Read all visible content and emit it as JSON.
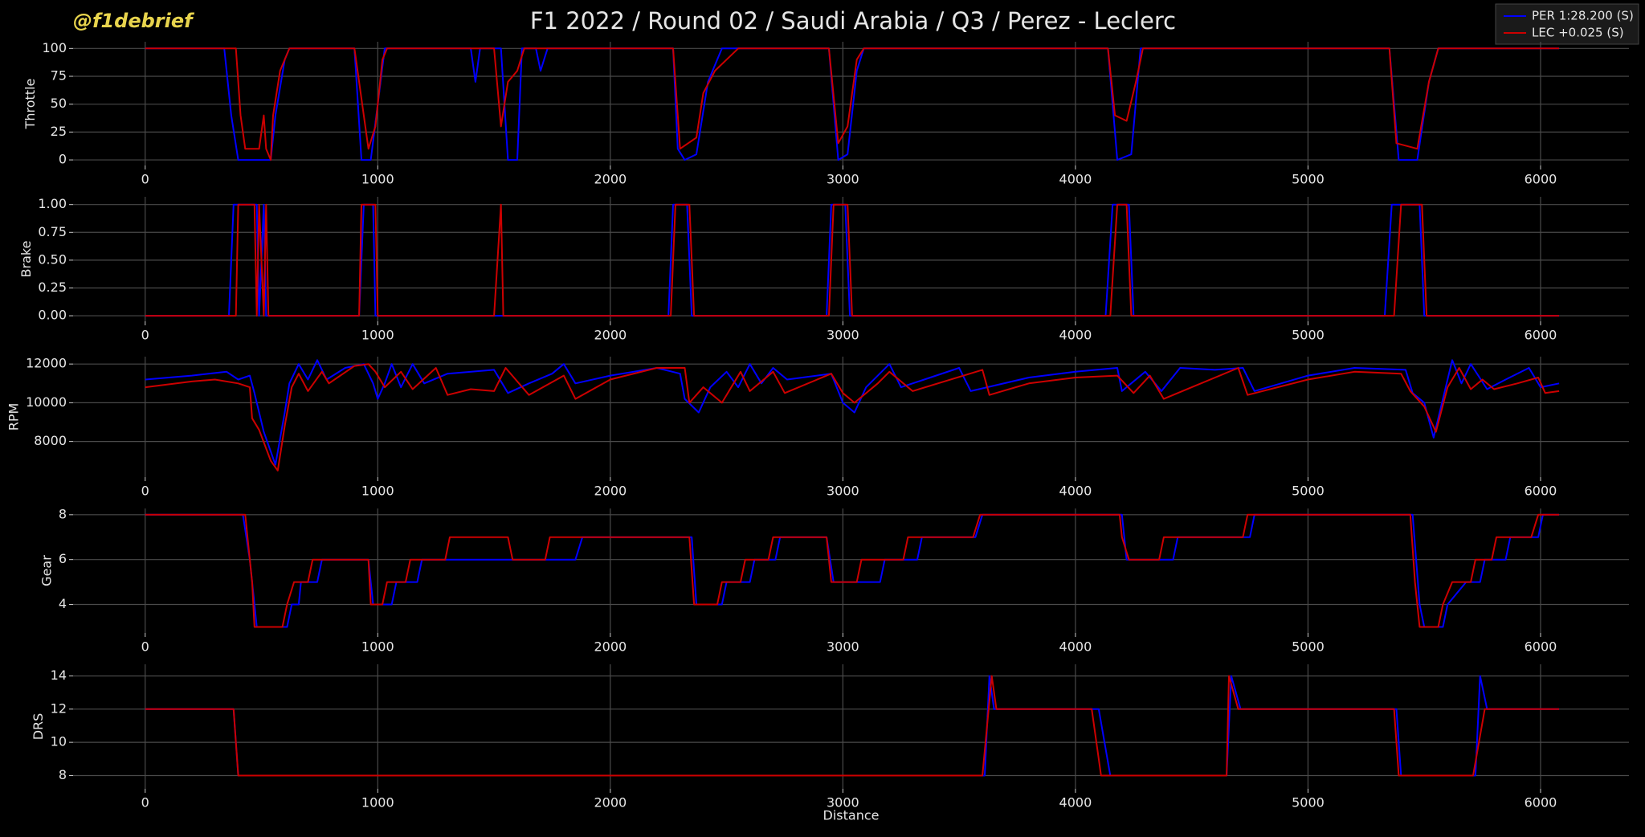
{
  "title": "F1 2022 / Round 02 / Saudi Arabia / Q3 / Perez - Leclerc",
  "watermark": "@f1debrief",
  "legend": [
    {
      "name": "PER 1:28.200 (S)",
      "color": "#0000ff"
    },
    {
      "name": "LEC +0.025 (S)",
      "color": "#cc0000"
    }
  ],
  "chart_data": [
    {
      "type": "line",
      "ylabel": "Throttle",
      "xlim": [
        -310,
        6380
      ],
      "xticks": [
        0,
        1000,
        2000,
        3000,
        4000,
        5000,
        6000
      ],
      "ylim": [
        -5,
        106
      ],
      "yticks": [
        0,
        25,
        50,
        75,
        100
      ],
      "grid": true,
      "series": [
        {
          "x": [
            0,
            340,
            370,
            400,
            500,
            540,
            560,
            600,
            620,
            900,
            930,
            970,
            1000,
            1030,
            1400,
            1420,
            1440,
            1530,
            1560,
            1600,
            1620,
            1680,
            1700,
            1730,
            2270,
            2290,
            2320,
            2370,
            2420,
            2480,
            2940,
            2980,
            3020,
            3060,
            3090,
            4140,
            4180,
            4240,
            4280,
            5350,
            5390,
            5470,
            5520,
            5560,
            6080
          ],
          "values": [
            100,
            100,
            40,
            0,
            0,
            0,
            40,
            90,
            100,
            100,
            0,
            0,
            50,
            100,
            100,
            70,
            100,
            100,
            0,
            0,
            100,
            100,
            80,
            100,
            100,
            10,
            0,
            5,
            70,
            100,
            100,
            0,
            5,
            80,
            100,
            100,
            0,
            5,
            100,
            100,
            0,
            0,
            70,
            100,
            100
          ]
        },
        {
          "x": [
            0,
            390,
            410,
            430,
            490,
            510,
            520,
            540,
            550,
            580,
            620,
            900,
            940,
            960,
            990,
            1020,
            1040,
            1500,
            1530,
            1560,
            1600,
            1630,
            2270,
            2300,
            2370,
            2400,
            2450,
            2500,
            2550,
            2940,
            2980,
            3020,
            3060,
            3090,
            4140,
            4170,
            4220,
            4260,
            4290,
            5350,
            5380,
            5470,
            5520,
            5560,
            6080
          ],
          "values": [
            100,
            100,
            40,
            10,
            10,
            40,
            10,
            0,
            40,
            80,
            100,
            100,
            40,
            10,
            30,
            90,
            100,
            100,
            30,
            70,
            80,
            100,
            100,
            10,
            20,
            60,
            80,
            90,
            100,
            100,
            15,
            30,
            90,
            100,
            100,
            40,
            35,
            70,
            100,
            100,
            15,
            10,
            70,
            100,
            100
          ]
        }
      ]
    },
    {
      "type": "line",
      "ylabel": "Brake",
      "xlim": [
        -310,
        6380
      ],
      "xticks": [
        0,
        1000,
        2000,
        3000,
        4000,
        5000,
        6000
      ],
      "ylim": [
        -0.05,
        1.07
      ],
      "yticks": [
        {
          "value": 0,
          "label": "0.00"
        },
        {
          "value": 0.25,
          "label": "0.25"
        },
        {
          "value": 0.5,
          "label": "0.50"
        },
        {
          "value": 0.75,
          "label": "0.75"
        },
        {
          "value": 1,
          "label": "1.00"
        }
      ],
      "grid": true,
      "series": [
        {
          "x": [
            0,
            360,
            380,
            480,
            490,
            510,
            520,
            920,
            940,
            980,
            990,
            2250,
            2270,
            2330,
            2350,
            2930,
            2950,
            3010,
            3030,
            4130,
            4160,
            4230,
            4250,
            5330,
            5360,
            5480,
            5500,
            6080
          ],
          "values": [
            0,
            0,
            1,
            1,
            0,
            1,
            0,
            0,
            1,
            1,
            0,
            0,
            1,
            1,
            0,
            0,
            1,
            1,
            0,
            0,
            1,
            1,
            0,
            0,
            1,
            1,
            0,
            0
          ]
        },
        {
          "x": [
            0,
            390,
            400,
            470,
            480,
            490,
            510,
            520,
            530,
            920,
            930,
            990,
            1000,
            1500,
            1530,
            1540,
            2260,
            2280,
            2340,
            2360,
            2940,
            2960,
            3020,
            3040,
            4150,
            4180,
            4220,
            4240,
            5370,
            5400,
            5490,
            5510,
            6080
          ],
          "values": [
            0,
            0,
            1,
            1,
            0,
            1,
            0,
            1,
            0,
            0,
            1,
            1,
            0,
            0,
            1,
            0,
            0,
            1,
            1,
            0,
            0,
            1,
            1,
            0,
            0,
            1,
            1,
            0,
            0,
            1,
            1,
            0,
            0
          ]
        }
      ]
    },
    {
      "type": "line",
      "ylabel": "RPM",
      "xlim": [
        -310,
        6380
      ],
      "xticks": [
        0,
        1000,
        2000,
        3000,
        4000,
        5000,
        6000
      ],
      "ylim": [
        6160,
        12380
      ],
      "yticks": [
        8000,
        10000,
        12000
      ],
      "grid": true,
      "series": [
        {
          "x": [
            0,
            200,
            350,
            400,
            450,
            470,
            510,
            560,
            600,
            620,
            660,
            700,
            740,
            780,
            860,
            940,
            980,
            1000,
            1030,
            1060,
            1100,
            1150,
            1200,
            1300,
            1500,
            1560,
            1650,
            1750,
            1800,
            1850,
            2000,
            2200,
            2300,
            2320,
            2380,
            2430,
            2500,
            2550,
            2600,
            2650,
            2700,
            2760,
            2950,
            3000,
            3050,
            3100,
            3200,
            3250,
            3350,
            3500,
            3550,
            3800,
            4000,
            4180,
            4200,
            4300,
            4370,
            4450,
            4600,
            4720,
            4770,
            5000,
            5200,
            5420,
            5450,
            5500,
            5540,
            5580,
            5620,
            5660,
            5700,
            5770,
            5850,
            5950,
            6000,
            6080
          ],
          "values": [
            11200,
            11400,
            11600,
            11200,
            11400,
            10500,
            8500,
            6800,
            9500,
            11000,
            12000,
            11200,
            12200,
            11200,
            11800,
            12000,
            11000,
            10200,
            11000,
            12000,
            10800,
            12000,
            11000,
            11500,
            11700,
            10500,
            11000,
            11500,
            12000,
            11000,
            11400,
            11800,
            11500,
            10200,
            9500,
            10800,
            11600,
            10800,
            12000,
            11000,
            11800,
            11200,
            11500,
            10000,
            9500,
            10800,
            12000,
            10800,
            11200,
            11800,
            10600,
            11300,
            11600,
            11800,
            10600,
            11600,
            10600,
            11800,
            11700,
            11800,
            10600,
            11400,
            11800,
            11700,
            10500,
            10000,
            8200,
            10200,
            12200,
            11000,
            12000,
            10700,
            11200,
            11800,
            10800,
            11000
          ]
        },
        {
          "x": [
            0,
            200,
            300,
            400,
            450,
            460,
            490,
            540,
            570,
            600,
            630,
            660,
            700,
            760,
            790,
            900,
            960,
            990,
            1030,
            1100,
            1150,
            1250,
            1300,
            1400,
            1500,
            1550,
            1650,
            1800,
            1850,
            2000,
            2200,
            2320,
            2340,
            2400,
            2480,
            2560,
            2600,
            2700,
            2750,
            2950,
            3000,
            3050,
            3150,
            3200,
            3300,
            3600,
            3630,
            3800,
            4000,
            4180,
            4250,
            4320,
            4380,
            4500,
            4700,
            4740,
            5000,
            5200,
            5400,
            5440,
            5500,
            5550,
            5600,
            5650,
            5700,
            5750,
            5800,
            5900,
            5990,
            6020,
            6080
          ],
          "values": [
            10800,
            11100,
            11200,
            11000,
            10800,
            9200,
            8600,
            7000,
            6500,
            8800,
            10800,
            11500,
            10600,
            11600,
            11000,
            11900,
            12000,
            11600,
            10800,
            11600,
            10700,
            11800,
            10400,
            10700,
            10600,
            11800,
            10400,
            11400,
            10200,
            11200,
            11800,
            11800,
            10000,
            10800,
            10000,
            11600,
            10600,
            11600,
            10500,
            11500,
            10500,
            10000,
            11000,
            11600,
            10600,
            11700,
            10400,
            11000,
            11300,
            11400,
            10500,
            11400,
            10200,
            10800,
            11800,
            10400,
            11200,
            11600,
            11500,
            10600,
            9800,
            8500,
            10800,
            11800,
            10700,
            11200,
            10700,
            11000,
            11300,
            10500,
            10600
          ]
        }
      ]
    },
    {
      "type": "line",
      "ylabel": "Gear",
      "xlim": [
        -310,
        6380
      ],
      "xticks": [
        0,
        1000,
        2000,
        3000,
        4000,
        5000,
        6000
      ],
      "ylim": [
        2.73,
        8.28
      ],
      "yticks": [
        4,
        6,
        8
      ],
      "grid": true,
      "series": [
        {
          "x": [
            0,
            420,
            450,
            480,
            610,
            630,
            660,
            670,
            740,
            760,
            960,
            980,
            1060,
            1080,
            1170,
            1190,
            1850,
            1880,
            2350,
            2370,
            2480,
            2500,
            2600,
            2620,
            2710,
            2730,
            2930,
            2960,
            3160,
            3180,
            3320,
            3340,
            3570,
            3600,
            4200,
            4220,
            4420,
            4440,
            4750,
            4770,
            5450,
            5480,
            5500,
            5580,
            5600,
            5680,
            5740,
            5760,
            5850,
            5870,
            5990,
            6010,
            6080
          ],
          "values": [
            8,
            8,
            6,
            3,
            3,
            4,
            4,
            5,
            5,
            6,
            6,
            4,
            4,
            5,
            5,
            6,
            6,
            7,
            7,
            4,
            4,
            5,
            5,
            6,
            6,
            7,
            7,
            5,
            5,
            6,
            6,
            7,
            7,
            8,
            8,
            6,
            6,
            7,
            7,
            8,
            8,
            4,
            3,
            3,
            4,
            5,
            5,
            6,
            6,
            7,
            7,
            8,
            8
          ]
        },
        {
          "x": [
            0,
            430,
            460,
            470,
            590,
            610,
            640,
            700,
            720,
            960,
            970,
            1020,
            1040,
            1120,
            1140,
            1290,
            1310,
            1560,
            1580,
            1720,
            1740,
            2340,
            2360,
            2460,
            2480,
            2560,
            2580,
            2680,
            2700,
            2930,
            2950,
            3060,
            3080,
            3260,
            3280,
            3560,
            3590,
            4190,
            4200,
            4230,
            4360,
            4380,
            4720,
            4740,
            5440,
            5460,
            5480,
            5560,
            5580,
            5620,
            5700,
            5720,
            5790,
            5810,
            5960,
            5990,
            6080
          ],
          "values": [
            8,
            8,
            5,
            3,
            3,
            4,
            5,
            5,
            6,
            6,
            4,
            4,
            5,
            5,
            6,
            6,
            7,
            7,
            6,
            6,
            7,
            7,
            4,
            4,
            5,
            5,
            6,
            6,
            7,
            7,
            5,
            5,
            6,
            6,
            7,
            7,
            8,
            8,
            7,
            6,
            6,
            7,
            7,
            8,
            8,
            5,
            3,
            3,
            4,
            5,
            5,
            6,
            6,
            7,
            7,
            8,
            8
          ]
        }
      ]
    },
    {
      "type": "line",
      "ylabel": "DRS",
      "xlabel": "Distance",
      "xlim": [
        -310,
        6380
      ],
      "xticks": [
        0,
        1000,
        2000,
        3000,
        4000,
        5000,
        6000
      ],
      "ylim": [
        7.2,
        14.7
      ],
      "yticks": [
        8,
        10,
        12,
        14
      ],
      "grid": true,
      "series": [
        {
          "x": [
            0,
            380,
            400,
            3610,
            3630,
            3650,
            4100,
            4150,
            4650,
            4670,
            4710,
            5380,
            5400,
            5720,
            5740,
            5770,
            6080
          ],
          "values": [
            12,
            12,
            8,
            8,
            14,
            12,
            12,
            8,
            8,
            14,
            12,
            12,
            8,
            8,
            14,
            12,
            12
          ]
        },
        {
          "x": [
            0,
            380,
            400,
            3600,
            3640,
            3660,
            4070,
            4110,
            4650,
            4660,
            4700,
            5370,
            5390,
            5710,
            5760,
            6080
          ],
          "values": [
            12,
            12,
            8,
            8,
            14,
            12,
            12,
            8,
            8,
            14,
            12,
            12,
            8,
            8,
            12,
            12
          ]
        }
      ]
    }
  ]
}
